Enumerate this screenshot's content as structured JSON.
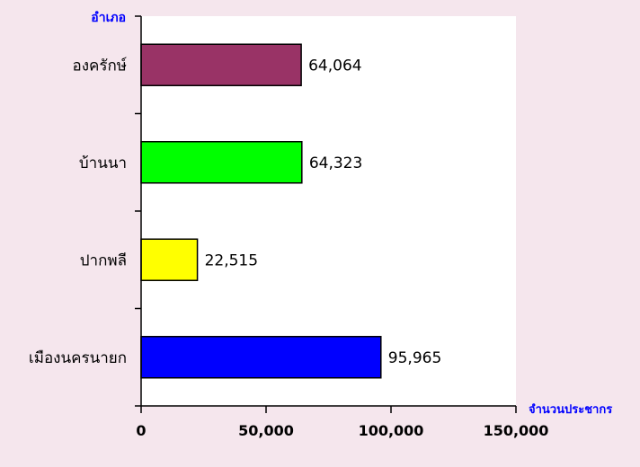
{
  "chart_data": {
    "type": "bar",
    "orientation": "horizontal",
    "categories": [
      "องครักษ์",
      "บ้านนา",
      "ปากพลี",
      "เมืองนครนายก"
    ],
    "values": [
      64064,
      64323,
      22515,
      95965
    ],
    "value_labels": [
      "64,064",
      "64,323",
      "22,515",
      "95,965"
    ],
    "bar_colors": [
      "#993366",
      "#00ff00",
      "#ffff00",
      "#0000ff"
    ],
    "title": "",
    "xlabel": "จำนวนประชากร",
    "ylabel": "อำเภอ",
    "xlim": [
      0,
      150000
    ],
    "x_ticks": [
      0,
      50000,
      100000,
      150000
    ],
    "x_tick_labels": [
      "0",
      "50,000",
      "100,000",
      "150,000"
    ],
    "grid": false,
    "legend": "none",
    "axis_title_color": "#0000ff",
    "plot_background": "#ffffff",
    "page_background": "#f5e6ed"
  }
}
